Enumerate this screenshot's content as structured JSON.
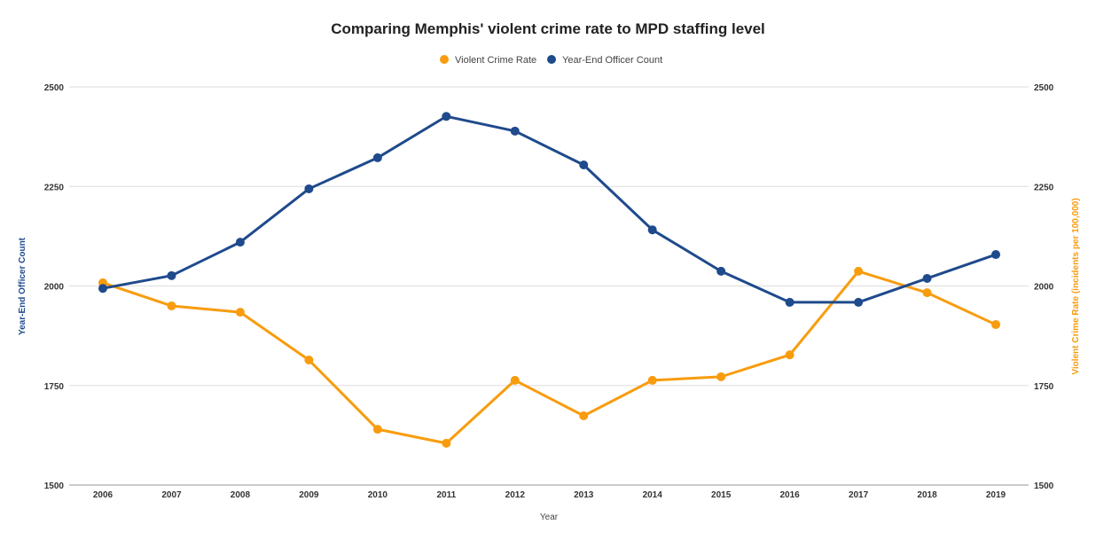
{
  "chart_data": {
    "type": "line",
    "title": "Comparing Memphis' violent crime rate to MPD staffing level",
    "xlabel": "Year",
    "ylabel_left": "Year-End Officer Count",
    "ylabel_right": "Violent Crime Rate (incidents per 100,000)",
    "ylim": [
      1500,
      2500
    ],
    "yticks": [
      1500,
      1750,
      2000,
      2250,
      2500
    ],
    "grid": true,
    "legend_position": "top",
    "categories": [
      "2006",
      "2007",
      "2008",
      "2009",
      "2010",
      "2011",
      "2012",
      "2013",
      "2014",
      "2015",
      "2016",
      "2017",
      "2018",
      "2019"
    ],
    "series": [
      {
        "name": "Violent Crime Rate",
        "color": "#f89c0e",
        "axis": "right",
        "values": [
          2008,
          1950,
          1934,
          1814,
          1640,
          1605,
          1763,
          1674,
          1763,
          1772,
          1827,
          2037,
          1983,
          1903
        ]
      },
      {
        "name": "Year-End Officer Count",
        "color": "#1f4a8c",
        "axis": "left",
        "values": [
          1994,
          2026,
          2110,
          2244,
          2322,
          2426,
          2389,
          2304,
          2141,
          2037,
          1959,
          1959,
          2019,
          2079
        ]
      }
    ]
  }
}
